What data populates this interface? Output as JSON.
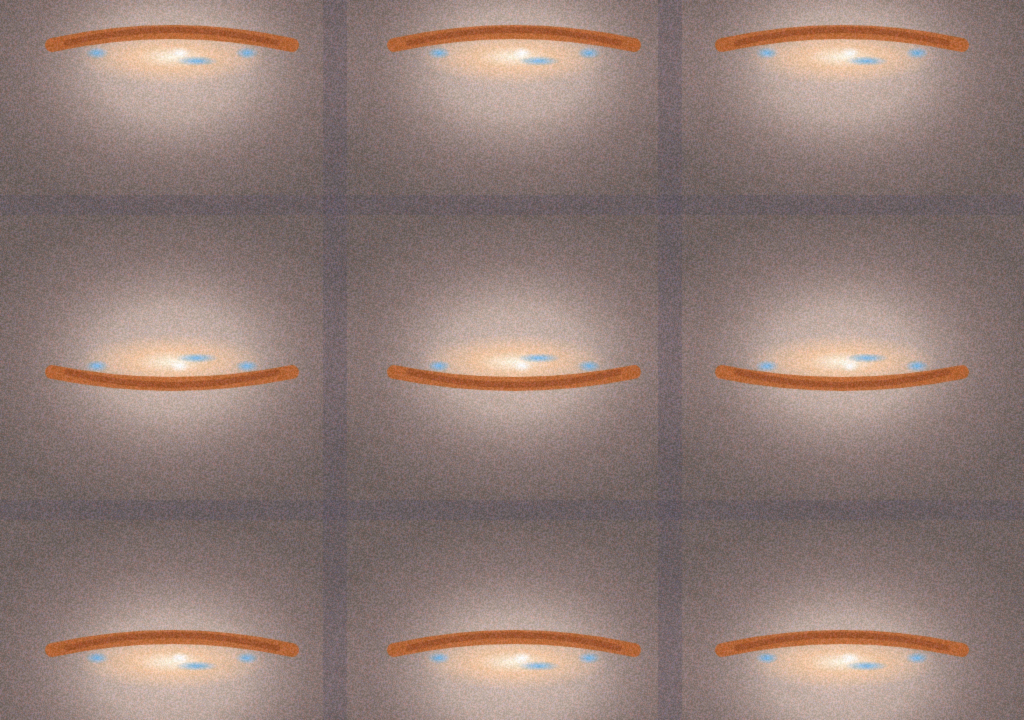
{
  "image": {
    "subject": "galaxy-tile-grid",
    "grid": {
      "columns": 3,
      "rows": 3
    },
    "tile_orientation": [
      "lanes-above",
      "lanes-below",
      "lanes-above"
    ],
    "colors": {
      "background": "#6f6460",
      "halo": "#d8c3b6",
      "halo_mid": "#a8908a",
      "core": "#fff4e0",
      "bulge": "#f2c7a0",
      "dust_lane": "#b4602c",
      "dust_dark": "#8a4a2a",
      "blue_knot": "#6fb4e8",
      "seam": "#5d5660"
    }
  }
}
